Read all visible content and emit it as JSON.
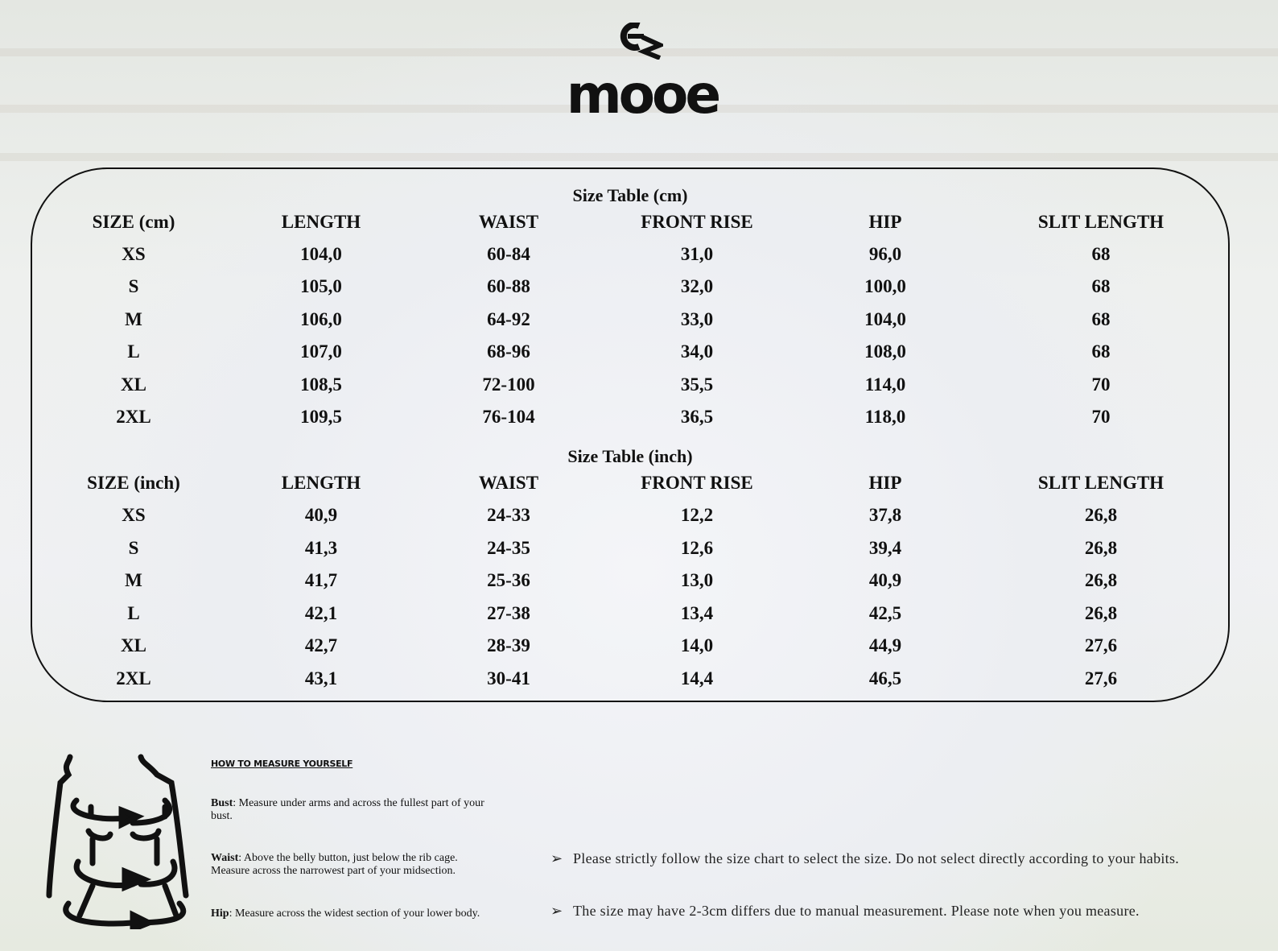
{
  "brand": {
    "name": "mooe",
    "mark": "mooe-monogram"
  },
  "cm_table": {
    "title": "Size Table (cm)",
    "headers": [
      "SIZE (cm)",
      "LENGTH",
      "WAIST",
      "FRONT RISE",
      "HIP",
      "SLIT LENGTH"
    ],
    "rows": [
      [
        "XS",
        "104,0",
        "60-84",
        "31,0",
        "96,0",
        "68"
      ],
      [
        "S",
        "105,0",
        "60-88",
        "32,0",
        "100,0",
        "68"
      ],
      [
        "M",
        "106,0",
        "64-92",
        "33,0",
        "104,0",
        "68"
      ],
      [
        "L",
        "107,0",
        "68-96",
        "34,0",
        "108,0",
        "68"
      ],
      [
        "XL",
        "108,5",
        "72-100",
        "35,5",
        "114,0",
        "70"
      ],
      [
        "2XL",
        "109,5",
        "76-104",
        "36,5",
        "118,0",
        "70"
      ]
    ]
  },
  "inch_table": {
    "title": "Size Table (inch)",
    "headers": [
      "SIZE (inch)",
      "LENGTH",
      "WAIST",
      "FRONT RISE",
      "HIP",
      "SLIT LENGTH"
    ],
    "rows": [
      [
        "XS",
        "40,9",
        "24-33",
        "12,2",
        "37,8",
        "26,8"
      ],
      [
        "S",
        "41,3",
        "24-35",
        "12,6",
        "39,4",
        "26,8"
      ],
      [
        "M",
        "41,7",
        "25-36",
        "13,0",
        "40,9",
        "26,8"
      ],
      [
        "L",
        "42,1",
        "27-38",
        "13,4",
        "42,5",
        "26,8"
      ],
      [
        "XL",
        "42,7",
        "28-39",
        "14,0",
        "44,9",
        "27,6"
      ],
      [
        "2XL",
        "43,1",
        "30-41",
        "14,4",
        "46,5",
        "27,6"
      ]
    ]
  },
  "how_to": {
    "title": "HOW TO MEASURE YOURSELF",
    "items": [
      {
        "label": "Bust",
        "text": ": Measure under arms and across the fullest part of your bust."
      },
      {
        "label": "Waist",
        "text": ": Above the belly button, just below the rib cage. Measure across the narrowest part of your midsection."
      },
      {
        "label": "Hip",
        "text": ": Measure across the widest section of your lower body."
      }
    ]
  },
  "notes": [
    "Please strictly follow the size chart to select the size. Do not select directly according to your habits.",
    "The size may have 2-3cm differs due to manual measurement. Please note when you measure."
  ],
  "icons": {
    "bullet": "arrowhead-bullet-icon",
    "figure": "body-measurement-icon"
  }
}
